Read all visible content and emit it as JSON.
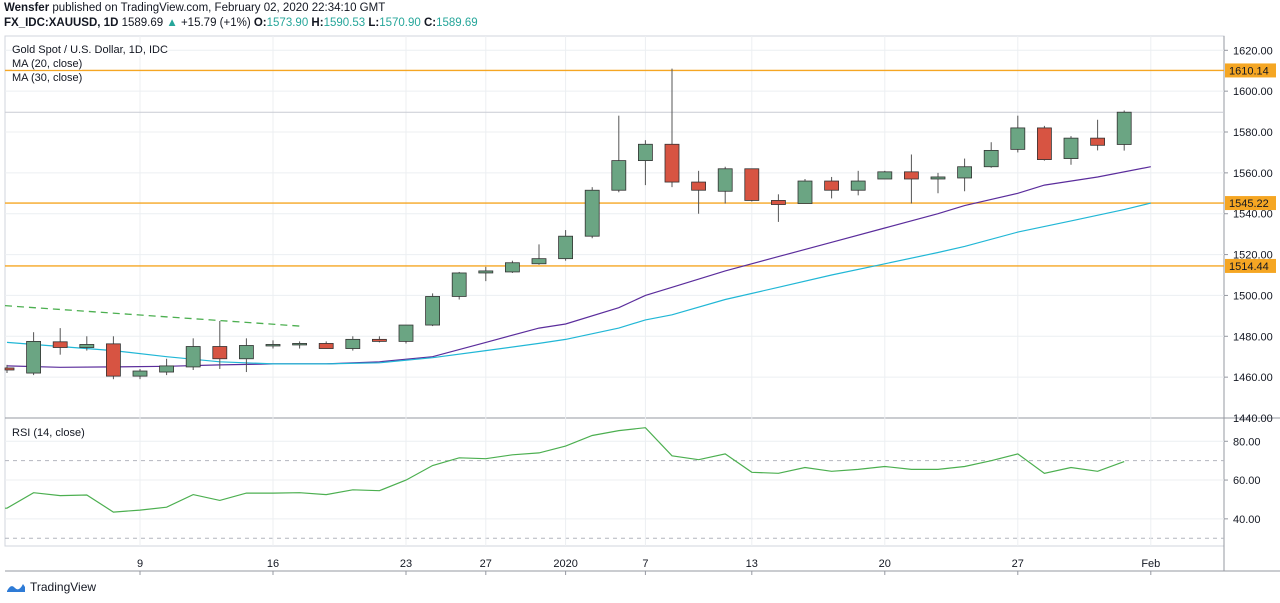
{
  "header": {
    "publisher": "Wensfer",
    "published_text": "published on TradingView.com, February 02, 2020 22:34:10 GMT",
    "symbol": "FX_IDC:XAUUSD, 1D",
    "last": "1589.69",
    "change": "+15.79 (+1%)",
    "open_label": "O:",
    "open": "1573.90",
    "high_label": "H:",
    "high": "1590.53",
    "low_label": "L:",
    "low": "1570.90",
    "close_label": "C:",
    "close": "1589.69"
  },
  "legend": {
    "title": "Gold Spot / U.S. Dollar, 1D, IDC",
    "ma20": "MA (20, close)",
    "ma30": "MA (30, close)",
    "rsi": "RSI (14, close)"
  },
  "branding": {
    "text": "TradingView"
  },
  "colors": {
    "up": "#6ba583",
    "down": "#d75442",
    "ma20": "#5b2d9c",
    "ma30": "#21b7d6",
    "level": "#f5a623",
    "rsi": "#4caf50",
    "trend": "#4caf50",
    "grid": "#eceff2"
  },
  "chart_data": [
    {
      "type": "candlestick",
      "title": "Gold Spot / U.S. Dollar, 1D, IDC",
      "ylim": [
        1440,
        1627
      ],
      "y_ticks": [
        1440,
        1460,
        1480,
        1500,
        1520,
        1540,
        1560,
        1580,
        1600,
        1620
      ],
      "x_ticks": [
        {
          "label": "9",
          "index": 5
        },
        {
          "label": "16",
          "index": 10
        },
        {
          "label": "23",
          "index": 15
        },
        {
          "label": "27",
          "index": 18
        },
        {
          "label": "2020",
          "index": 21
        },
        {
          "label": "7",
          "index": 24
        },
        {
          "label": "13",
          "index": 28
        },
        {
          "label": "20",
          "index": 33
        },
        {
          "label": "27",
          "index": 38
        },
        {
          "label": "Feb",
          "index": 43
        }
      ],
      "candles": [
        {
          "o": 1464.5,
          "h": 1466,
          "l": 1462,
          "c": 1463.5
        },
        {
          "o": 1462,
          "h": 1482,
          "l": 1461,
          "c": 1477.5
        },
        {
          "o": 1477.3,
          "h": 1484,
          "l": 1471,
          "c": 1474.5
        },
        {
          "o": 1474.5,
          "h": 1480,
          "l": 1473,
          "c": 1476
        },
        {
          "o": 1476.3,
          "h": 1480,
          "l": 1459,
          "c": 1460.5
        },
        {
          "o": 1460.5,
          "h": 1464,
          "l": 1459,
          "c": 1463
        },
        {
          "o": 1462.5,
          "h": 1469,
          "l": 1461,
          "c": 1465.5
        },
        {
          "o": 1465,
          "h": 1479,
          "l": 1463.5,
          "c": 1475
        },
        {
          "o": 1475,
          "h": 1487.5,
          "l": 1464,
          "c": 1469
        },
        {
          "o": 1469,
          "h": 1479,
          "l": 1462.5,
          "c": 1475.5
        },
        {
          "o": 1475.5,
          "h": 1478,
          "l": 1474,
          "c": 1476
        },
        {
          "o": 1476,
          "h": 1477.5,
          "l": 1474,
          "c": 1476.5
        },
        {
          "o": 1476.5,
          "h": 1477.5,
          "l": 1474,
          "c": 1474
        },
        {
          "o": 1474,
          "h": 1480,
          "l": 1473,
          "c": 1478.5
        },
        {
          "o": 1478.5,
          "h": 1480,
          "l": 1477,
          "c": 1477.5
        },
        {
          "o": 1477.5,
          "h": 1485.5,
          "l": 1476.5,
          "c": 1485.5
        },
        {
          "o": 1485.5,
          "h": 1501,
          "l": 1485,
          "c": 1499.5
        },
        {
          "o": 1499.5,
          "h": 1511.5,
          "l": 1498,
          "c": 1511
        },
        {
          "o": 1511,
          "h": 1514,
          "l": 1507,
          "c": 1512
        },
        {
          "o": 1511.5,
          "h": 1517,
          "l": 1511,
          "c": 1516
        },
        {
          "o": 1515.5,
          "h": 1525,
          "l": 1515,
          "c": 1518
        },
        {
          "o": 1518,
          "h": 1532,
          "l": 1517,
          "c": 1529
        },
        {
          "o": 1529,
          "h": 1553,
          "l": 1528,
          "c": 1551.5
        },
        {
          "o": 1551.5,
          "h": 1588,
          "l": 1550.5,
          "c": 1566
        },
        {
          "o": 1566,
          "h": 1576,
          "l": 1554,
          "c": 1574
        },
        {
          "o": 1574,
          "h": 1611,
          "l": 1553,
          "c": 1555.5
        },
        {
          "o": 1555.5,
          "h": 1561,
          "l": 1540,
          "c": 1551.5
        },
        {
          "o": 1551,
          "h": 1563,
          "l": 1545,
          "c": 1562
        },
        {
          "o": 1562,
          "h": 1562,
          "l": 1546,
          "c": 1546.5
        },
        {
          "o": 1546.5,
          "h": 1549.5,
          "l": 1536,
          "c": 1544.5
        },
        {
          "o": 1545,
          "h": 1557,
          "l": 1545,
          "c": 1556
        },
        {
          "o": 1556,
          "h": 1558,
          "l": 1547.5,
          "c": 1551.5
        },
        {
          "o": 1551.5,
          "h": 1561,
          "l": 1549,
          "c": 1556
        },
        {
          "o": 1557,
          "h": 1561,
          "l": 1557,
          "c": 1560.5
        },
        {
          "o": 1560.5,
          "h": 1569,
          "l": 1545,
          "c": 1557
        },
        {
          "o": 1557,
          "h": 1560,
          "l": 1550,
          "c": 1558
        },
        {
          "o": 1557.5,
          "h": 1567,
          "l": 1551,
          "c": 1563
        },
        {
          "o": 1563,
          "h": 1575,
          "l": 1562.5,
          "c": 1571
        },
        {
          "o": 1571.5,
          "h": 1588,
          "l": 1570,
          "c": 1582
        },
        {
          "o": 1582,
          "h": 1583,
          "l": 1566,
          "c": 1566.5
        },
        {
          "o": 1567,
          "h": 1578,
          "l": 1564,
          "c": 1577
        },
        {
          "o": 1577,
          "h": 1586,
          "l": 1571,
          "c": 1573.5
        },
        {
          "o": 1573.9,
          "h": 1590.53,
          "l": 1570.9,
          "c": 1589.69
        }
      ],
      "series": [
        {
          "name": "MA (20, close)",
          "points": [
            [
              0,
              1465.5
            ],
            [
              2,
              1464.8
            ],
            [
              4,
              1465
            ],
            [
              6,
              1465.3
            ],
            [
              8,
              1466
            ],
            [
              10,
              1466.5
            ],
            [
              12,
              1466.5
            ],
            [
              14,
              1467.5
            ],
            [
              16,
              1470
            ],
            [
              18,
              1477
            ],
            [
              20,
              1484
            ],
            [
              21,
              1486
            ],
            [
              23,
              1494
            ],
            [
              24,
              1500
            ],
            [
              25,
              1504
            ],
            [
              27,
              1512
            ],
            [
              29,
              1519
            ],
            [
              31,
              1526
            ],
            [
              33,
              1533
            ],
            [
              35,
              1540
            ],
            [
              36,
              1544
            ],
            [
              38,
              1550
            ],
            [
              39,
              1554
            ],
            [
              41,
              1558
            ],
            [
              43,
              1563
            ]
          ]
        },
        {
          "name": "MA (30, close)",
          "points": [
            [
              0,
              1477
            ],
            [
              2,
              1475
            ],
            [
              4,
              1473
            ],
            [
              6,
              1470
            ],
            [
              8,
              1467.5
            ],
            [
              10,
              1466.5
            ],
            [
              12,
              1466.5
            ],
            [
              14,
              1467
            ],
            [
              16,
              1469.5
            ],
            [
              18,
              1473
            ],
            [
              20,
              1476.5
            ],
            [
              21,
              1478.5
            ],
            [
              23,
              1484
            ],
            [
              24,
              1488
            ],
            [
              25,
              1490.5
            ],
            [
              27,
              1498
            ],
            [
              29,
              1504
            ],
            [
              31,
              1510
            ],
            [
              33,
              1515.5
            ],
            [
              35,
              1521
            ],
            [
              36,
              1524
            ],
            [
              38,
              1531
            ],
            [
              40,
              1536.5
            ],
            [
              42,
              1542
            ],
            [
              43,
              1545.22
            ]
          ]
        }
      ],
      "levels": [
        {
          "label": "1610.14",
          "value": 1610.14
        },
        {
          "label": "1545.22",
          "value": 1545.22
        },
        {
          "label": "1514.44",
          "value": 1514.44
        }
      ],
      "last_price": 1589.69,
      "trendline": [
        [
          0,
          1495
        ],
        [
          11,
          1485
        ]
      ]
    },
    {
      "type": "line",
      "title": "RSI (14, close)",
      "ylim": [
        26,
        92
      ],
      "y_ticks": [
        40,
        60,
        80
      ],
      "bands": [
        30,
        70
      ],
      "series": [
        {
          "name": "RSI (14, close)",
          "values": [
            45.5,
            53.5,
            52,
            52.3,
            43.5,
            44.5,
            46,
            52.5,
            49.5,
            53.3,
            53.3,
            53.5,
            52.5,
            55,
            54.5,
            60,
            67.5,
            71.5,
            71,
            73,
            74,
            77.5,
            83,
            85.5,
            87,
            72.5,
            70.5,
            73.5,
            64,
            63.5,
            66.5,
            64.5,
            65.5,
            67,
            65.5,
            65.5,
            67,
            70,
            73.5,
            63.5,
            66.5,
            64.5,
            69.5
          ]
        }
      ]
    }
  ]
}
